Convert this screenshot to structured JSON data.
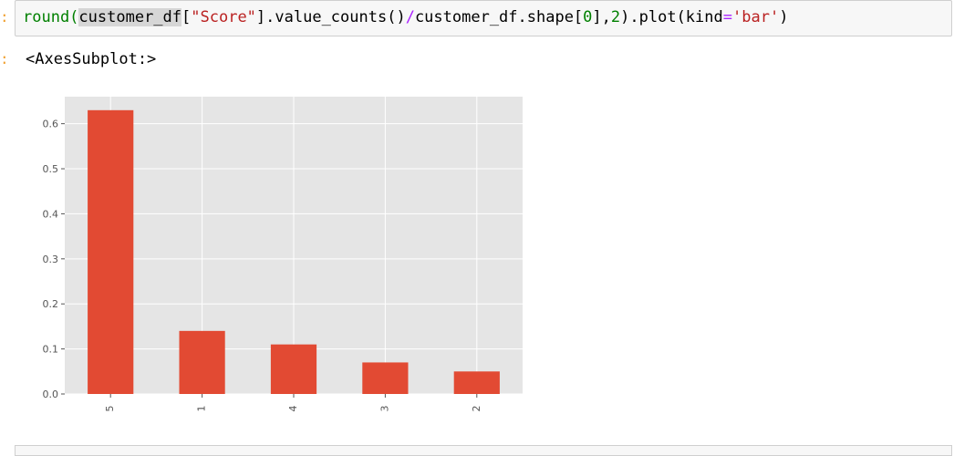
{
  "input_prompt": ":",
  "output_prompt": ":",
  "code": {
    "t1": "round(",
    "t2": "customer_df",
    "t3": "[",
    "t4": "\"Score\"",
    "t5": "].value_counts()",
    "t6": "/",
    "t7": "customer_df.shape[",
    "t8": "0",
    "t9": "],",
    "t10": "2",
    "t11": ").plot(kind",
    "t12": "=",
    "t13": "'bar'",
    "t14": ")"
  },
  "output_text": "<AxesSubplot:>",
  "chart_data": {
    "type": "bar",
    "categories": [
      "5",
      "1",
      "4",
      "3",
      "2"
    ],
    "values": [
      0.63,
      0.14,
      0.11,
      0.07,
      0.05
    ],
    "ylim": [
      0,
      0.66
    ],
    "yticks": [
      "0.0",
      "0.1",
      "0.2",
      "0.3",
      "0.4",
      "0.5",
      "0.6"
    ],
    "grid": true,
    "colors": {
      "bar": "#e24a33",
      "background": "#e5e5e5",
      "grid": "#ffffff",
      "tick_label": "#555555"
    }
  }
}
